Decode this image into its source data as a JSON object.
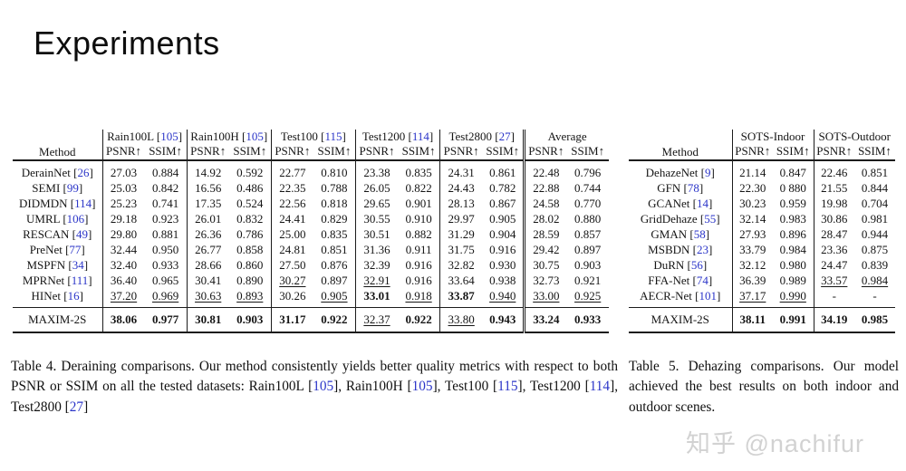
{
  "page": {
    "title": "Experiments",
    "watermark": "知乎 @nachifur"
  },
  "colors": {
    "cite_blue": "#2b35c8",
    "rule_black": "#1c1c1c",
    "watermark_gray": "#d2d2d2"
  },
  "format_note": "cell value prefix: * = best result (bold), _ = second best (underlined)",
  "table4": {
    "method_header": "Method",
    "psnr_label": "PSNR↑",
    "ssim_label": "SSIM↑",
    "groups": [
      {
        "name": "Rain100L",
        "cite": "105"
      },
      {
        "name": "Rain100H",
        "cite": "105"
      },
      {
        "name": "Test100",
        "cite": "115"
      },
      {
        "name": "Test1200",
        "cite": "114"
      },
      {
        "name": "Test2800",
        "cite": "27"
      },
      {
        "name": "Average",
        "cite": null
      }
    ],
    "double_sep_group": 5,
    "rows": [
      {
        "method": "DerainNet",
        "cite": "26",
        "cells": [
          "27.03",
          "0.884",
          "14.92",
          "0.592",
          "22.77",
          "0.810",
          "23.38",
          "0.835",
          "24.31",
          "0.861",
          "22.48",
          "0.796"
        ]
      },
      {
        "method": "SEMI",
        "cite": "99",
        "cells": [
          "25.03",
          "0.842",
          "16.56",
          "0.486",
          "22.35",
          "0.788",
          "26.05",
          "0.822",
          "24.43",
          "0.782",
          "22.88",
          "0.744"
        ]
      },
      {
        "method": "DIDMDN",
        "cite": "114",
        "cells": [
          "25.23",
          "0.741",
          "17.35",
          "0.524",
          "22.56",
          "0.818",
          "29.65",
          "0.901",
          "28.13",
          "0.867",
          "24.58",
          "0.770"
        ]
      },
      {
        "method": "UMRL",
        "cite": "106",
        "cells": [
          "29.18",
          "0.923",
          "26.01",
          "0.832",
          "24.41",
          "0.829",
          "30.55",
          "0.910",
          "29.97",
          "0.905",
          "28.02",
          "0.880"
        ]
      },
      {
        "method": "RESCAN",
        "cite": "49",
        "cells": [
          "29.80",
          "0.881",
          "26.36",
          "0.786",
          "25.00",
          "0.835",
          "30.51",
          "0.882",
          "31.29",
          "0.904",
          "28.59",
          "0.857"
        ]
      },
      {
        "method": "PreNet",
        "cite": "77",
        "cells": [
          "32.44",
          "0.950",
          "26.77",
          "0.858",
          "24.81",
          "0.851",
          "31.36",
          "0.911",
          "31.75",
          "0.916",
          "29.42",
          "0.897"
        ]
      },
      {
        "method": "MSPFN",
        "cite": "34",
        "cells": [
          "32.40",
          "0.933",
          "28.66",
          "0.860",
          "27.50",
          "0.876",
          "32.39",
          "0.916",
          "32.82",
          "0.930",
          "30.75",
          "0.903"
        ]
      },
      {
        "method": "MPRNet",
        "cite": "111",
        "cells": [
          "36.40",
          "0.965",
          "30.41",
          "0.890",
          "_30.27",
          "0.897",
          "_32.91",
          "0.916",
          "33.64",
          "0.938",
          "32.73",
          "0.921"
        ]
      },
      {
        "method": "HINet",
        "cite": "16",
        "cells": [
          "_37.20",
          "_0.969",
          "_30.63",
          "_0.893",
          "30.26",
          "_0.905",
          "*33.01",
          "_0.918",
          "*33.87",
          "_0.940",
          "_33.00",
          "_0.925"
        ]
      }
    ],
    "final_row": {
      "method": "MAXIM-2S",
      "cite": null,
      "cells": [
        "*38.06",
        "*0.977",
        "*30.81",
        "*0.903",
        "*31.17",
        "*0.922",
        "_32.37",
        "*0.922",
        "_33.80",
        "*0.943",
        "*33.24",
        "*0.933"
      ]
    },
    "caption": [
      {
        "t": "Table 4.  Deraining comparisons.  Our method consistently yields better quality metrics with respect to both PSNR or SSIM on all the tested datasets: Rain100L ["
      },
      {
        "t": "105",
        "c": true
      },
      {
        "t": "], Rain100H ["
      },
      {
        "t": "105",
        "c": true
      },
      {
        "t": "], Test100 ["
      },
      {
        "t": "115",
        "c": true
      },
      {
        "t": "], Test1200 ["
      },
      {
        "t": "114",
        "c": true
      },
      {
        "t": "], Test2800 ["
      },
      {
        "t": "27",
        "c": true
      },
      {
        "t": "]"
      }
    ]
  },
  "table5": {
    "method_header": "Method",
    "psnr_label": "PSNR↑",
    "ssim_label": "SSIM↑",
    "groups": [
      {
        "name": "SOTS-Indoor",
        "cite": null
      },
      {
        "name": "SOTS-Outdoor",
        "cite": null
      }
    ],
    "double_sep_group": -1,
    "rows": [
      {
        "method": "DehazeNet",
        "cite": "9",
        "cells": [
          "21.14",
          "0.847",
          "22.46",
          "0.851"
        ]
      },
      {
        "method": "GFN",
        "cite": "78",
        "cells": [
          "22.30",
          "0 880",
          "21.55",
          "0.844"
        ]
      },
      {
        "method": "GCANet",
        "cite": "14",
        "cells": [
          "30.23",
          "0.959",
          "19.98",
          "0.704"
        ]
      },
      {
        "method": "GridDehaze",
        "cite": "55",
        "cells": [
          "32.14",
          "0.983",
          "30.86",
          "0.981"
        ]
      },
      {
        "method": "GMAN",
        "cite": "58",
        "cells": [
          "27.93",
          "0.896",
          "28.47",
          "0.944"
        ]
      },
      {
        "method": "MSBDN",
        "cite": "23",
        "cells": [
          "33.79",
          "0.984",
          "23.36",
          "0.875"
        ]
      },
      {
        "method": "DuRN",
        "cite": "56",
        "cells": [
          "32.12",
          "0.980",
          "24.47",
          "0.839"
        ]
      },
      {
        "method": "FFA-Net",
        "cite": "74",
        "cells": [
          "36.39",
          "0.989",
          "_33.57",
          "_0.984"
        ]
      },
      {
        "method": "AECR-Net",
        "cite": "101",
        "cells": [
          "_37.17",
          "_0.990",
          "-",
          "-"
        ]
      }
    ],
    "final_row": {
      "method": "MAXIM-2S",
      "cite": null,
      "cells": [
        "*38.11",
        "*0.991",
        "*34.19",
        "*0.985"
      ]
    },
    "caption": [
      {
        "t": "Table 5.  Dehazing comparisons.  Our model achieved the best results on both indoor and outdoor scenes."
      }
    ]
  }
}
